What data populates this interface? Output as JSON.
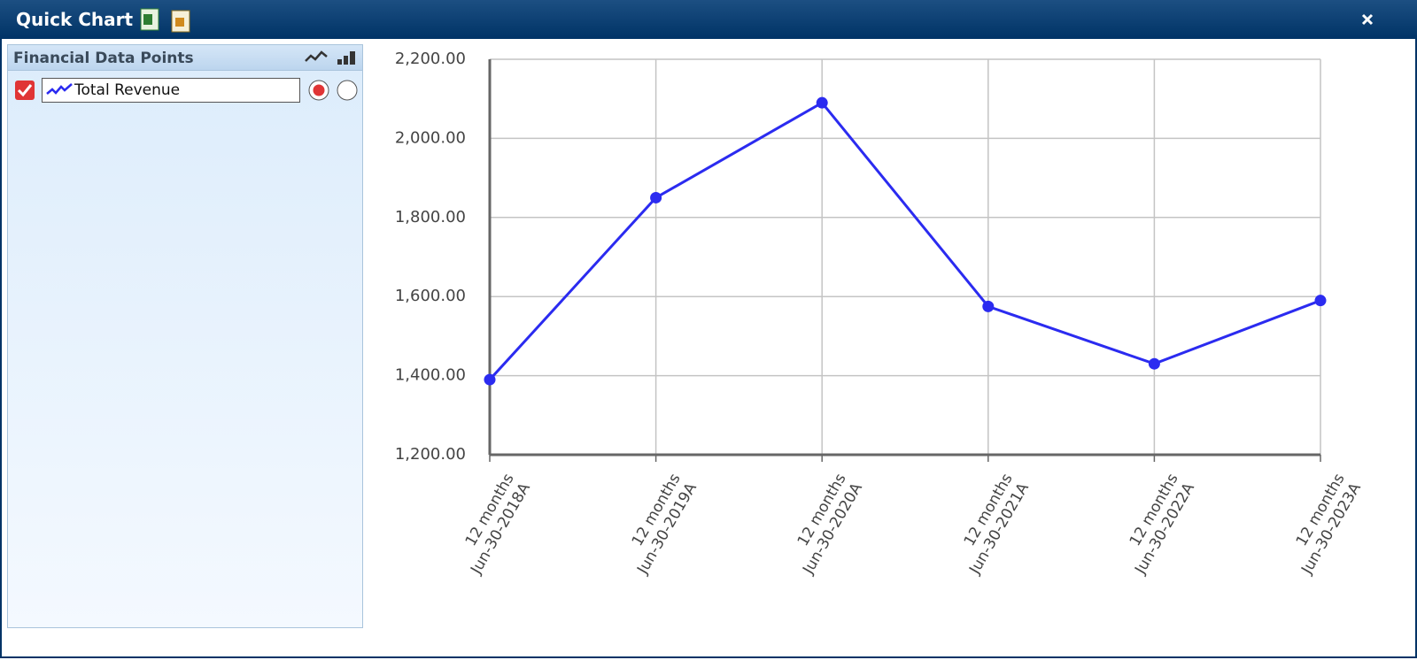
{
  "window": {
    "title": "Quick Chart"
  },
  "panel": {
    "title": "Financial Data Points"
  },
  "chart_data": {
    "type": "line",
    "categories": [
      "12 months\nJun-30-2018A",
      "12 months\nJun-30-2019A",
      "12 months\nJun-30-2020A",
      "12 months\nJun-30-2021A",
      "12 months\nJun-30-2022A",
      "12 months\nJun-30-2023A"
    ],
    "series": [
      {
        "name": "Total Revenue",
        "color": "#2b2bf0",
        "values": [
          1390,
          1850,
          2090,
          1575,
          1430,
          1590
        ]
      }
    ],
    "ylim": [
      1200,
      2200
    ],
    "yticks": [
      {
        "value": 1200,
        "label": "1,200.00"
      },
      {
        "value": 1400,
        "label": "1,400.00"
      },
      {
        "value": 1600,
        "label": "1,600.00"
      },
      {
        "value": 1800,
        "label": "1,800.00"
      },
      {
        "value": 2000,
        "label": "2,000.00"
      },
      {
        "value": 2200,
        "label": "2,200.00"
      }
    ],
    "grid": true
  }
}
